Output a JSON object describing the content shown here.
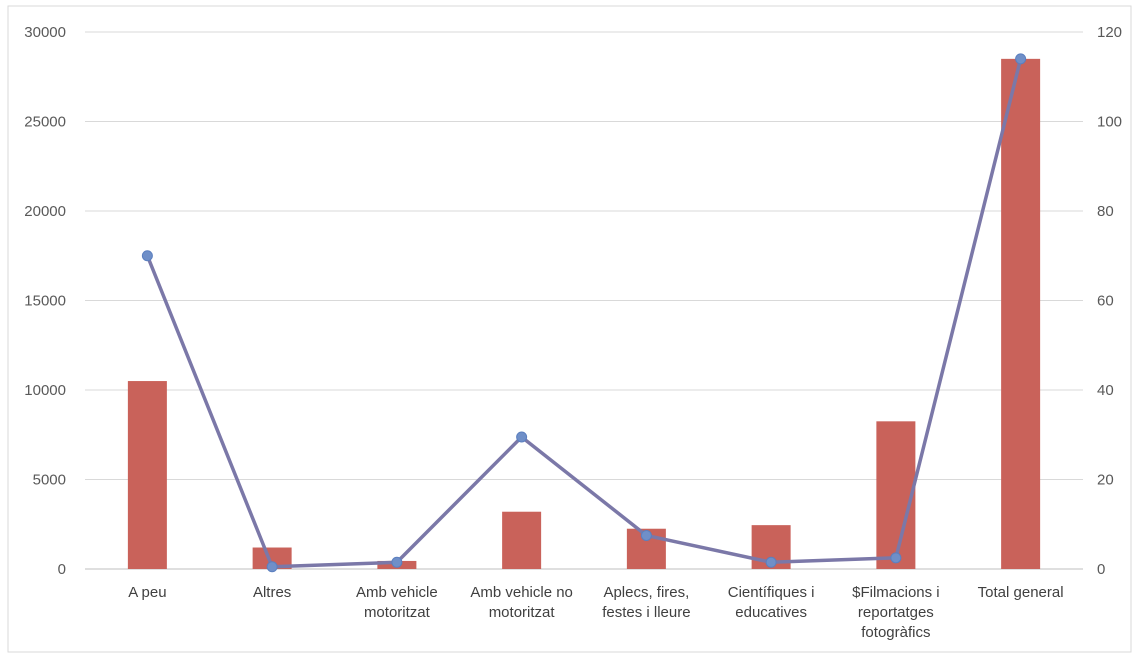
{
  "chart_data": {
    "type": "bar",
    "categories": [
      [
        "A peu"
      ],
      [
        "Altres"
      ],
      [
        "Amb vehicle",
        "motoritzat"
      ],
      [
        "Amb vehicle no",
        "motoritzat"
      ],
      [
        "Aplecs, fires,",
        "festes i lleure"
      ],
      [
        "Científiques i",
        "educatives"
      ],
      [
        "$Filmacions i",
        "reportatges",
        "fotogràfics"
      ],
      [
        "Total general"
      ]
    ],
    "series": [
      {
        "type": "bar",
        "axis": "left",
        "color": "#C9625A",
        "values": [
          10500,
          1200,
          450,
          3200,
          2250,
          2450,
          8250,
          28500
        ]
      },
      {
        "type": "line",
        "axis": "right",
        "color": "#7B78A8",
        "marker_color": "#6F8FC8",
        "values": [
          70,
          0.5,
          1.5,
          29.5,
          7.5,
          1.5,
          2.5,
          114
        ]
      }
    ],
    "y_left": {
      "min": 0,
      "max": 30000,
      "ticks": [
        "0",
        "5000",
        "10000",
        "15000",
        "20000",
        "25000",
        "30000"
      ]
    },
    "y_right": {
      "min": 0,
      "max": 120,
      "ticks": [
        "0",
        "20",
        "40",
        "60",
        "80",
        "100",
        "120"
      ]
    },
    "grid": true,
    "legend": "none"
  }
}
